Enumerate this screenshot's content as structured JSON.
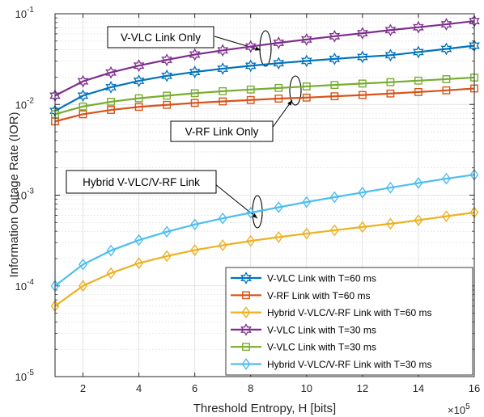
{
  "chart_data": {
    "type": "line",
    "xlabel": "Threshold Entropy, H [bits]",
    "ylabel": "Information Outage Rate (IOR)",
    "x_multiplier": "×10^5",
    "x_multiplier_base": "×10",
    "x_multiplier_exp": "5",
    "xlim": [
      1,
      16
    ],
    "ylim": [
      1e-05,
      0.1
    ],
    "y_scale": "log",
    "grid": true,
    "legend_position": "bottom-right",
    "x_ticks": [
      2,
      4,
      6,
      8,
      10,
      12,
      14,
      16
    ],
    "y_ticks": [
      {
        "value": 1e-05,
        "base": "10",
        "exp": "-5"
      },
      {
        "value": 0.0001,
        "base": "10",
        "exp": "-4"
      },
      {
        "value": 0.001,
        "base": "10",
        "exp": "-3"
      },
      {
        "value": 0.01,
        "base": "10",
        "exp": "-2"
      },
      {
        "value": 0.1,
        "base": "10",
        "exp": "-1"
      }
    ],
    "x": [
      1,
      2,
      3,
      4,
      5,
      6,
      7,
      8,
      9,
      10,
      11,
      12,
      13,
      14,
      15,
      16
    ],
    "series": [
      {
        "name": "V-VLC Link with T=60 ms",
        "color": "#0072bd",
        "marker": "hexagram",
        "values": [
          0.0085,
          0.0125,
          0.0155,
          0.0182,
          0.0207,
          0.0228,
          0.0248,
          0.0267,
          0.0285,
          0.0302,
          0.0318,
          0.0334,
          0.0349,
          0.0378,
          0.041,
          0.0445
        ]
      },
      {
        "name": "V-RF Link with T=60 ms",
        "color": "#d95319",
        "marker": "square",
        "values": [
          0.0065,
          0.0078,
          0.0087,
          0.0094,
          0.0099,
          0.0104,
          0.0108,
          0.0112,
          0.0116,
          0.0119,
          0.0123,
          0.0127,
          0.0132,
          0.0137,
          0.0143,
          0.015
        ]
      },
      {
        "name": "Hybrid V-VLC/V-RF Link with T=60 ms",
        "color": "#edb120",
        "marker": "diamond",
        "values": [
          6e-05,
          0.0001,
          0.000138,
          0.000178,
          0.000213,
          0.000248,
          0.00028,
          0.000313,
          0.000345,
          0.000377,
          0.00041,
          0.000446,
          0.000484,
          0.00053,
          0.000585,
          0.000645
        ]
      },
      {
        "name": "V-VLC Link with T=30 ms",
        "color": "#7e2f8e",
        "marker": "hexagram",
        "values": [
          0.0125,
          0.018,
          0.0225,
          0.0268,
          0.031,
          0.0355,
          0.0395,
          0.0435,
          0.0478,
          0.052,
          0.0565,
          0.061,
          0.066,
          0.071,
          0.0765,
          0.083
        ]
      },
      {
        "name": "V-VLC Link with T=30 ms",
        "color": "#77ac30",
        "marker": "square",
        "values": [
          0.0078,
          0.0095,
          0.0107,
          0.0117,
          0.0125,
          0.0133,
          0.014,
          0.0146,
          0.0152,
          0.0158,
          0.0164,
          0.017,
          0.0176,
          0.0183,
          0.019,
          0.0198
        ]
      },
      {
        "name": "Hybrid V-VLC/V-RF Link with T=30 ms",
        "color": "#4dbeee",
        "marker": "diamond",
        "values": [
          0.0001,
          0.000172,
          0.000245,
          0.00032,
          0.000395,
          0.000475,
          0.000555,
          0.00064,
          0.000735,
          0.00084,
          0.00095,
          0.00107,
          0.00121,
          0.00136,
          0.00152,
          0.00168
        ]
      }
    ],
    "annotations": [
      {
        "text": "V-VLC Link Only"
      },
      {
        "text": "V-RF Link Only"
      },
      {
        "text": "Hybrid V-VLC/V-RF Link"
      }
    ]
  }
}
